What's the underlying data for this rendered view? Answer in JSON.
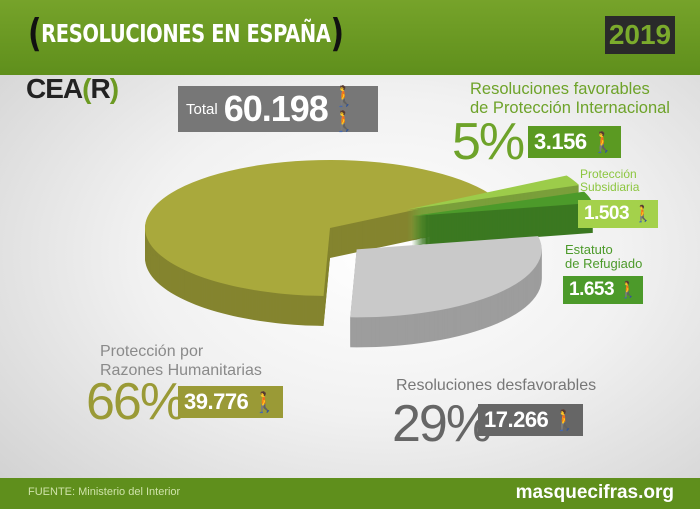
{
  "header": {
    "title": "RESOLUCIONES EN ESPAÑA",
    "bracket_open": "(",
    "bracket_close": ")",
    "year": "2019"
  },
  "logo": {
    "text": "CEA",
    "paren_open": "(",
    "letter": "R",
    "paren_close": ")"
  },
  "total": {
    "label": "Total",
    "value": "60.198",
    "icon": "two-hikers-icon"
  },
  "favorable": {
    "label_line1": "Resoluciones favorables",
    "label_line2": "de Protección Internacional",
    "percent": "5%",
    "value": "3.156"
  },
  "subsidiaria": {
    "label_line1": "Protección",
    "label_line2": "Subsidiaria",
    "value": "1.503"
  },
  "refugiado": {
    "label_line1": "Estatuto",
    "label_line2": "de Refugiado",
    "value": "1.653"
  },
  "humanitarias": {
    "label_line1": "Protección por",
    "label_line2": "Razones Humanitarias",
    "percent": "66%",
    "value": "39.776"
  },
  "desfavorables": {
    "label": "Resoluciones desfavorables",
    "percent": "29%",
    "value": "17.266"
  },
  "footer": {
    "source": "FUENTE: Ministerio del Interior",
    "site": "masquecifras.org"
  },
  "colors": {
    "brand_green": "#6a9a22",
    "olive": "#a9a93c",
    "gray": "#c8c8c8",
    "light_green": "#8cc63f",
    "green": "#4c9a2a"
  },
  "chart_data": {
    "type": "pie",
    "style": "3d-exploded",
    "total": 60198,
    "slices": [
      {
        "name": "Protección por Razones Humanitarias",
        "value": 39776,
        "percent": 66,
        "color": "#a9a93c"
      },
      {
        "name": "Protección Subsidiaria",
        "value": 1503,
        "color": "#9ccc4a"
      },
      {
        "name": "Estatuto de Refugiado",
        "value": 1653,
        "color": "#4c9a2a"
      },
      {
        "name": "Resoluciones desfavorables",
        "value": 17266,
        "percent": 29,
        "color": "#c9c9c9"
      }
    ]
  }
}
